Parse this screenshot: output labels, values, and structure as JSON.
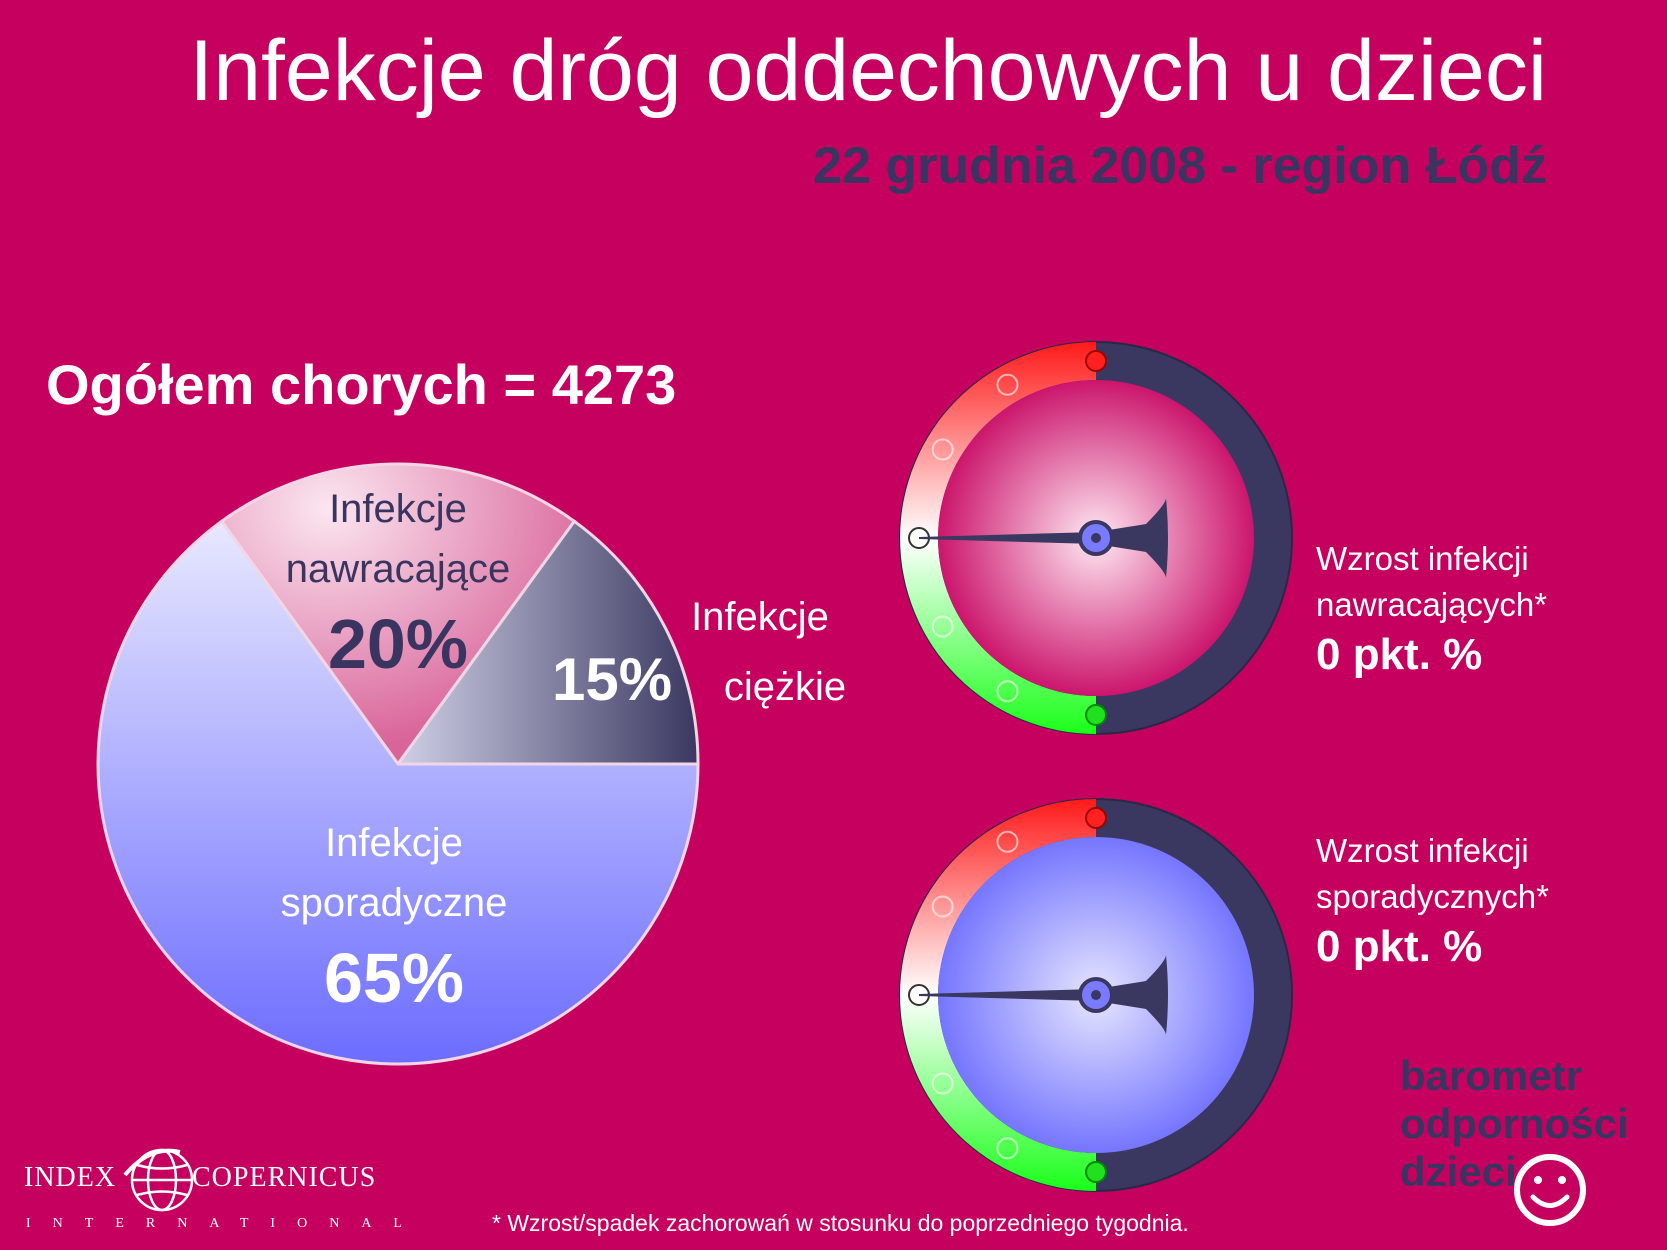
{
  "header": {
    "title": "Infekcje dróg oddechowych u dzieci",
    "subtitle": "22 grudnia 2008 - region Łódź"
  },
  "summary": {
    "total_label": "Ogółem chorych = 4273"
  },
  "chart_data": {
    "type": "pie",
    "title": "Ogółem chorych = 4273",
    "slices": [
      {
        "label_line1": "Infekcje",
        "label_line2": "nawracające",
        "value": 20,
        "value_label": "20%",
        "color": "#e28ab2"
      },
      {
        "label_line1": "Infekcje",
        "label_line2": "ciężkie",
        "value": 15,
        "value_label": "15%",
        "color": "#5c5a80"
      },
      {
        "label_line1": "Infekcje",
        "label_line2": "sporadyczne",
        "value": 65,
        "value_label": "65%",
        "color": "#9c9cff"
      }
    ]
  },
  "gauges": [
    {
      "label_line1": "Wzrost infekcji",
      "label_line2": "nawracających*",
      "value": 0,
      "value_label": "0 pkt. %",
      "face_color": "#c6005f"
    },
    {
      "label_line1": "Wzrost infekcji",
      "label_line2": "sporadycznych*",
      "value": 0,
      "value_label": "0 pkt. %",
      "face_color": "#6a6aff"
    }
  ],
  "brand": {
    "line1": "barometr",
    "line2": "odporności",
    "line3": "dzieci"
  },
  "logo": {
    "left_word": "INDEX",
    "right_word": "COPERNICUS",
    "sub": "INTERNATIONAL"
  },
  "footnote": "* Wzrost/spadek zachorowań w stosunku do poprzedniego tygodnia.",
  "colors": {
    "background": "#c6005f",
    "dark": "#3a3560",
    "white": "#ffffff"
  }
}
